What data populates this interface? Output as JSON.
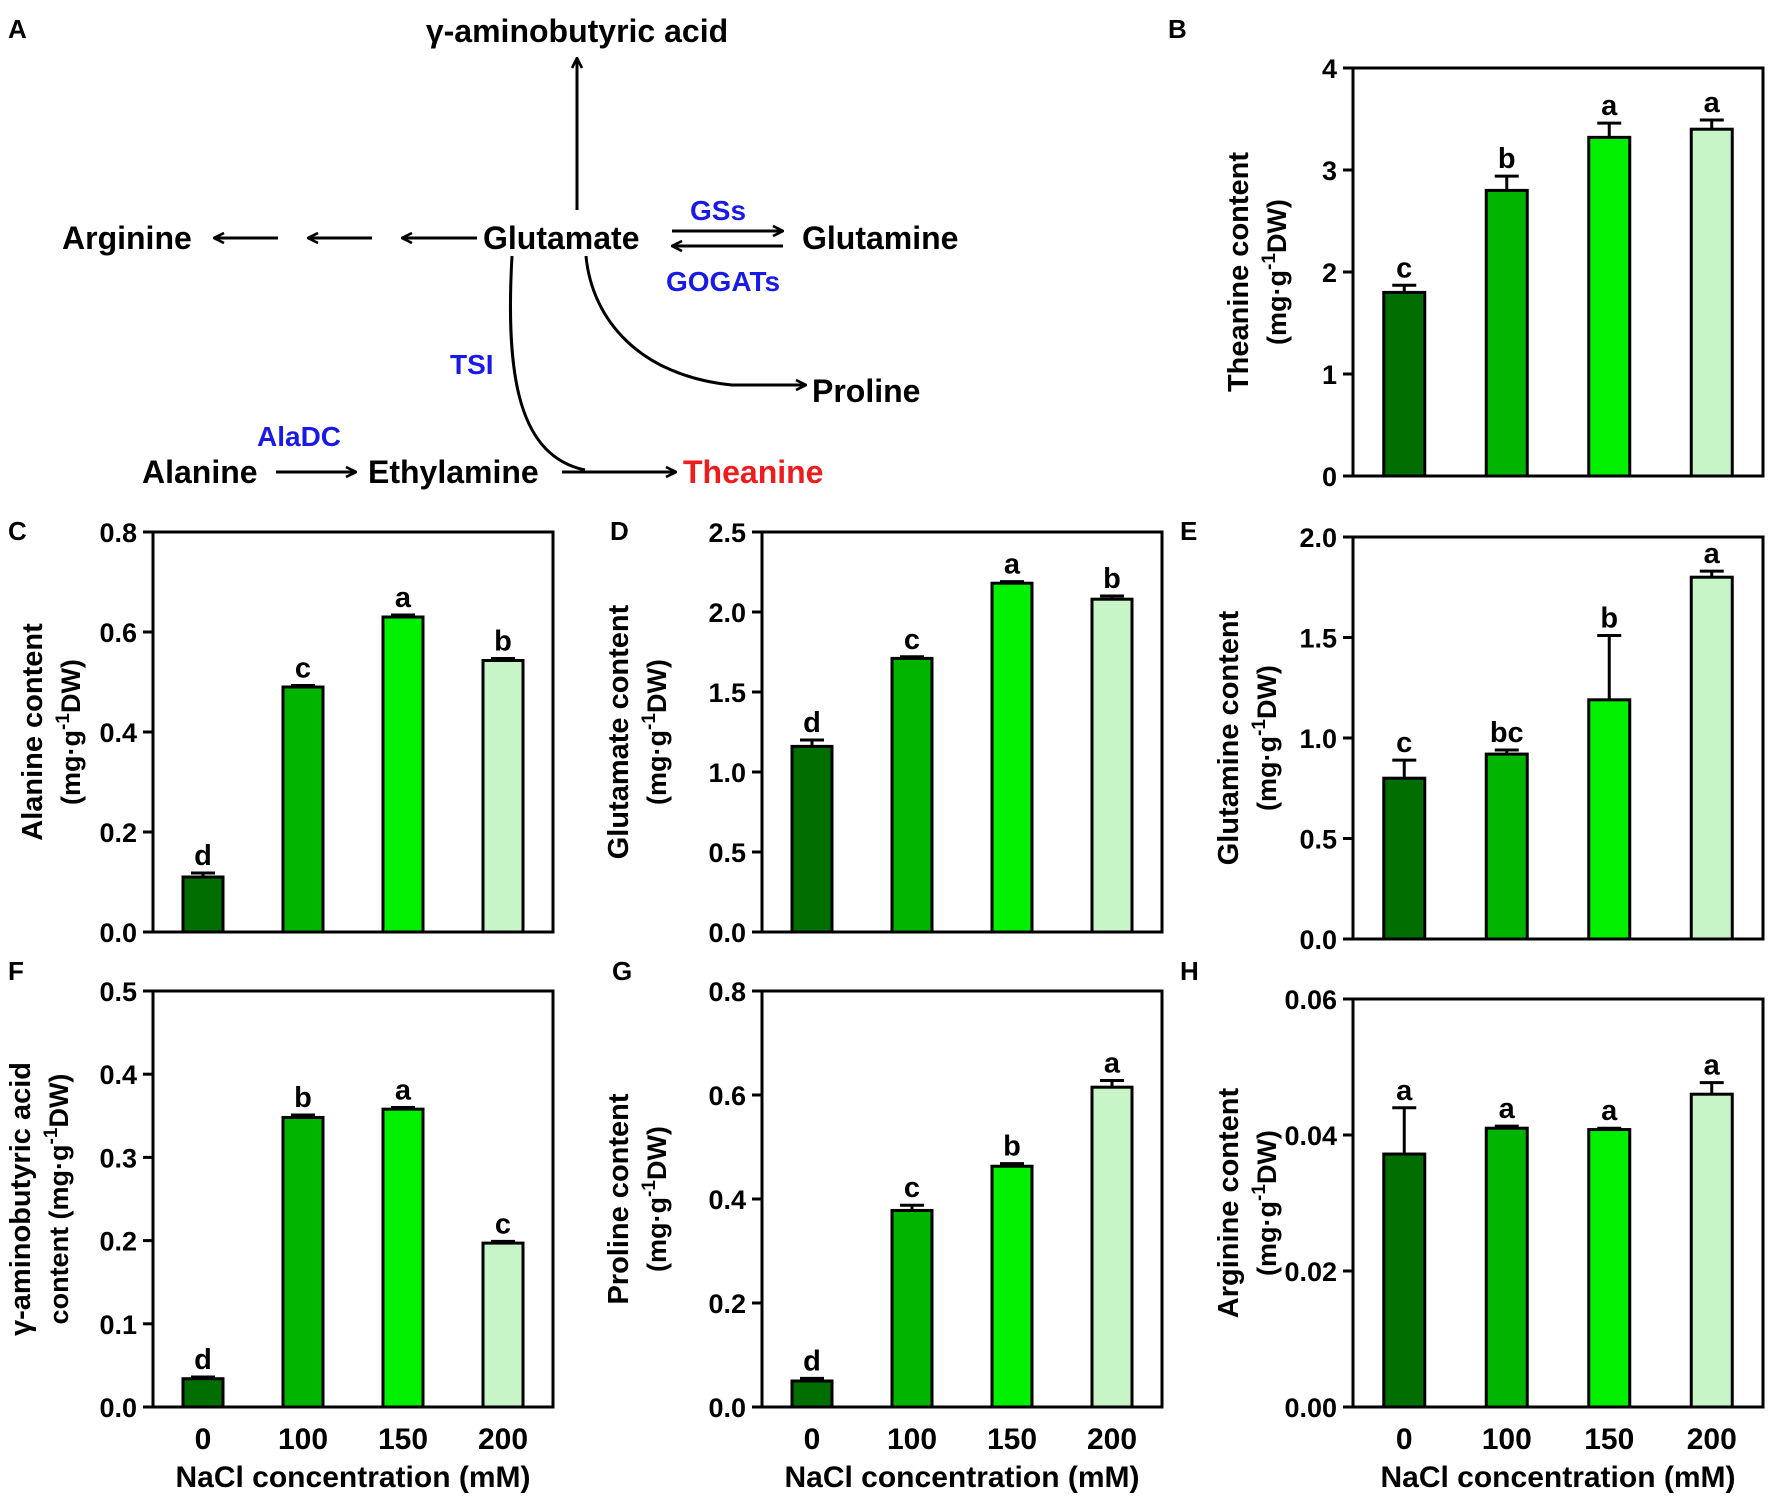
{
  "panel_labels": {
    "A": "A",
    "B": "B",
    "C": "C",
    "D": "D",
    "E": "E",
    "F": "F",
    "G": "G",
    "H": "H"
  },
  "pathway": {
    "nodes": {
      "gaba": "γ-aminobutyric acid",
      "arginine": "Arginine",
      "glutamate": "Glutamate",
      "glutamine": "Glutamine",
      "proline": "Proline",
      "alanine": "Alanine",
      "ethylamine": "Ethylamine",
      "theanine": "Theanine"
    },
    "enzymes": {
      "gss": "GSs",
      "gogats": "GOGATs",
      "tsi": "TSI",
      "aladc": "AlaDC"
    },
    "colors": {
      "enzyme": "#1a1ae6",
      "highlight": "#ee1c1c"
    }
  },
  "colors": {
    "bars": [
      "#006e00",
      "#00b400",
      "#00f000",
      "#c8f5c8"
    ],
    "axis": "#000000"
  },
  "x_axis": {
    "categories": [
      "0",
      "100",
      "150",
      "200"
    ],
    "label": "NaCl concentration (mM)"
  },
  "chart_data": [
    {
      "panel": "B",
      "type": "bar",
      "title": "",
      "ylabel_line1": "Theanine content",
      "ylabel_line2_prefix": "(mg·g",
      "ylabel_sup": "-1",
      "ylabel_line2_suffix": "DW)",
      "ylim": [
        0,
        4
      ],
      "yticks": [
        "0",
        "1",
        "2",
        "3",
        "4"
      ],
      "categories": [
        "0",
        "100",
        "150",
        "200"
      ],
      "values": [
        1.8,
        2.8,
        3.32,
        3.4
      ],
      "errors": [
        0.07,
        0.14,
        0.14,
        0.09
      ],
      "letters": [
        "c",
        "b",
        "a",
        "a"
      ]
    },
    {
      "panel": "C",
      "type": "bar",
      "title": "",
      "ylabel_line1": "Alanine content",
      "ylabel_line2_prefix": "(mg·g",
      "ylabel_sup": "-1",
      "ylabel_line2_suffix": "DW)",
      "ylim": [
        0,
        0.8
      ],
      "yticks": [
        "0.0",
        "0.2",
        "0.4",
        "0.6",
        "0.8"
      ],
      "categories": [
        "0",
        "100",
        "150",
        "200"
      ],
      "values": [
        0.11,
        0.49,
        0.63,
        0.543
      ],
      "errors": [
        0.008,
        0.003,
        0.004,
        0.004
      ],
      "letters": [
        "d",
        "c",
        "a",
        "b"
      ]
    },
    {
      "panel": "D",
      "type": "bar",
      "title": "",
      "ylabel_line1": "Glutamate content",
      "ylabel_line2_prefix": "(mg·g",
      "ylabel_sup": "-1",
      "ylabel_line2_suffix": "DW)",
      "ylim": [
        0,
        2.5
      ],
      "yticks": [
        "0.0",
        "0.5",
        "1.0",
        "1.5",
        "2.0",
        "2.5"
      ],
      "categories": [
        "0",
        "100",
        "150",
        "200"
      ],
      "values": [
        1.16,
        1.71,
        2.18,
        2.08
      ],
      "errors": [
        0.04,
        0.01,
        0.01,
        0.02
      ],
      "letters": [
        "d",
        "c",
        "a",
        "b"
      ]
    },
    {
      "panel": "E",
      "type": "bar",
      "title": "",
      "ylabel_line1": "Glutamine content",
      "ylabel_line2_prefix": "(mg·g",
      "ylabel_sup": "-1",
      "ylabel_line2_suffix": "DW)",
      "ylim": [
        0,
        2.0
      ],
      "yticks": [
        "0.0",
        "0.5",
        "1.0",
        "1.5",
        "2.0"
      ],
      "categories": [
        "0",
        "100",
        "150",
        "200"
      ],
      "values": [
        0.8,
        0.92,
        1.19,
        1.8
      ],
      "errors": [
        0.09,
        0.02,
        0.32,
        0.03
      ],
      "letters": [
        "c",
        "bc",
        "b",
        "a"
      ]
    },
    {
      "panel": "F",
      "type": "bar",
      "title": "",
      "ylabel_line1": "γ-aminobutyric acid",
      "ylabel_line2_prefix": "content (mg·g",
      "ylabel_sup": "-1",
      "ylabel_line2_suffix": "DW)",
      "ylim": [
        0,
        0.5
      ],
      "yticks": [
        "0.0",
        "0.1",
        "0.2",
        "0.3",
        "0.4",
        "0.5"
      ],
      "categories": [
        "0",
        "100",
        "150",
        "200"
      ],
      "values": [
        0.034,
        0.348,
        0.358,
        0.197
      ],
      "errors": [
        0.002,
        0.003,
        0.002,
        0.002
      ],
      "letters": [
        "d",
        "b",
        "a",
        "c"
      ]
    },
    {
      "panel": "G",
      "type": "bar",
      "title": "",
      "ylabel_line1": "Proline content",
      "ylabel_line2_prefix": "(mg·g",
      "ylabel_sup": "-1",
      "ylabel_line2_suffix": "DW)",
      "ylim": [
        0,
        0.8
      ],
      "yticks": [
        "0.0",
        "0.2",
        "0.4",
        "0.6",
        "0.8"
      ],
      "categories": [
        "0",
        "100",
        "150",
        "200"
      ],
      "values": [
        0.05,
        0.378,
        0.463,
        0.615
      ],
      "errors": [
        0.005,
        0.01,
        0.005,
        0.013
      ],
      "letters": [
        "d",
        "c",
        "b",
        "a"
      ]
    },
    {
      "panel": "H",
      "type": "bar",
      "title": "",
      "ylabel_line1": "Arginine content",
      "ylabel_line2_prefix": "(mg·g",
      "ylabel_sup": "-1",
      "ylabel_line2_suffix": "DW)",
      "ylim": [
        0,
        0.06
      ],
      "yticks": [
        "0.00",
        "0.02",
        "0.04",
        "0.06"
      ],
      "categories": [
        "0",
        "100",
        "150",
        "200"
      ],
      "values": [
        0.0372,
        0.041,
        0.0408,
        0.046
      ],
      "errors": [
        0.0068,
        0.0003,
        0.0002,
        0.0017
      ],
      "letters": [
        "a",
        "a",
        "a",
        "a"
      ]
    }
  ]
}
